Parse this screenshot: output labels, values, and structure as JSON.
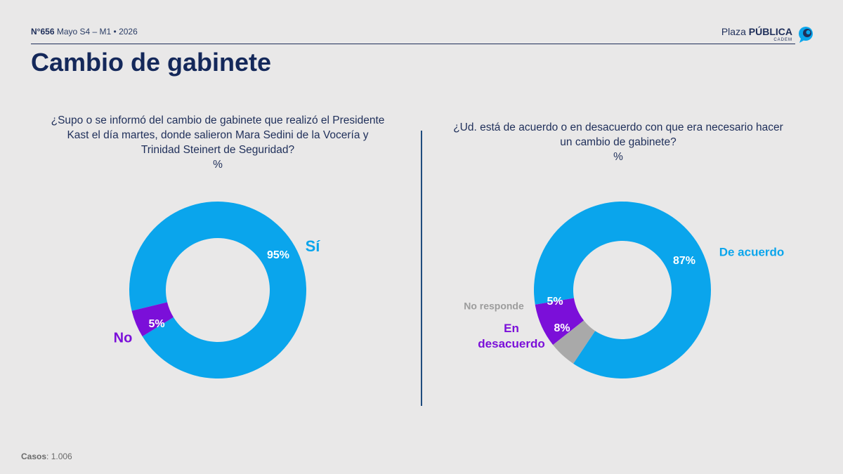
{
  "header": {
    "issue_number": "N°656",
    "issue_detail": "Mayo S4 – M1 • 2026",
    "brand_light": "Plaza ",
    "brand_bold": "PÚBLICA",
    "brand_sub": "CADEM"
  },
  "title": "Cambio de gabinete",
  "footer": {
    "casos_label": "Casos",
    "casos_value": ": 1.006"
  },
  "colors": {
    "blue": "#0aa5ec",
    "purple": "#7b0fd9",
    "gray": "#a9a9a9",
    "navy": "#14285a"
  },
  "chart_data": [
    {
      "type": "pie",
      "title": "¿Supo o se informó del cambio de gabinete que realizó el Presidente Kast el día martes, donde salieron Mara Sedini de la Vocería y Trinidad Steinert de Seguridad?",
      "unit": "%",
      "slices": [
        {
          "label": "Sí",
          "value": 95,
          "value_label": "95%",
          "color": "#0aa5ec"
        },
        {
          "label": "No",
          "value": 5,
          "value_label": "5%",
          "color": "#7b0fd9"
        }
      ]
    },
    {
      "type": "pie",
      "title": "¿Ud. está de acuerdo o en desacuerdo con que era necesario hacer un cambio de gabinete?",
      "unit": "%",
      "slices": [
        {
          "label": "De acuerdo",
          "value": 87,
          "value_label": "87%",
          "color": "#0aa5ec"
        },
        {
          "label": "En desacuerdo",
          "value": 8,
          "value_label": "8%",
          "color": "#7b0fd9"
        },
        {
          "label": "No responde",
          "value": 5,
          "value_label": "5%",
          "color": "#a9a9a9"
        }
      ]
    }
  ]
}
